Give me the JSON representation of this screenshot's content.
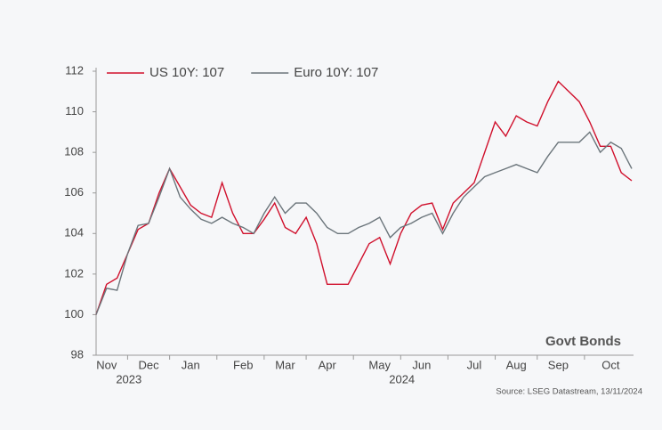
{
  "chart_data": {
    "type": "line",
    "annotation": "Govt Bonds",
    "source": "Source: LSEG Datastream, 13/11/2024",
    "categories": [
      null,
      "Nov",
      null,
      null,
      null,
      "Dec",
      null,
      null,
      null,
      "Jan",
      null,
      null,
      null,
      null,
      "Feb",
      null,
      null,
      null,
      "Mar",
      null,
      null,
      null,
      "Apr",
      null,
      null,
      null,
      null,
      "May",
      null,
      null,
      null,
      "Jun",
      null,
      null,
      null,
      null,
      "Jul",
      null,
      null,
      null,
      "Aug",
      null,
      null,
      null,
      "Sep",
      null,
      null,
      null,
      null,
      "Oct",
      null,
      null
    ],
    "years": [
      null,
      "2023",
      null,
      null,
      null,
      null,
      null,
      null,
      null,
      null,
      null,
      null,
      null,
      null,
      null,
      null,
      null,
      null,
      null,
      null,
      null,
      null,
      null,
      null,
      null,
      null,
      null,
      "2024",
      null,
      null,
      null,
      null,
      null,
      null,
      null,
      null,
      null,
      null,
      null,
      null,
      null,
      null,
      null,
      null,
      null,
      null,
      null,
      null,
      null,
      null,
      null,
      null
    ],
    "series": [
      {
        "name": "US 10Y: 107",
        "color": "#d0102c",
        "values": [
          100,
          101.5,
          101.8,
          103,
          104.2,
          104.5,
          106,
          107.2,
          106.3,
          105.4,
          105,
          104.8,
          106.5,
          105,
          104,
          104,
          104.7,
          105.5,
          104.3,
          104,
          104.8,
          103.5,
          101.5,
          101.5,
          101.5,
          102.5,
          103.5,
          103.8,
          102.5,
          104,
          105,
          105.4,
          105.5,
          104.2,
          105.5,
          106,
          106.5,
          108,
          109.5,
          108.8,
          109.8,
          109.5,
          109.3,
          110.5,
          111.5,
          111,
          110.5,
          109.5,
          108.3,
          108.3,
          107,
          106.6
        ]
      },
      {
        "name": "Euro 10Y: 107",
        "color": "#6b757b",
        "values": [
          100,
          101.3,
          101.2,
          103,
          104.4,
          104.5,
          105.8,
          107.2,
          105.8,
          105.2,
          104.7,
          104.5,
          104.8,
          104.5,
          104.3,
          104,
          105,
          105.8,
          105,
          105.5,
          105.5,
          105,
          104.3,
          104,
          104,
          104.3,
          104.5,
          104.8,
          103.8,
          104.3,
          104.5,
          104.8,
          105,
          104,
          105,
          105.8,
          106.3,
          106.8,
          107,
          107.2,
          107.4,
          107.2,
          107,
          107.8,
          108.5,
          108.5,
          108.5,
          109,
          108,
          108.5,
          108.2,
          107.2
        ]
      }
    ],
    "ylim": [
      98,
      112
    ],
    "yticks": [
      98,
      100,
      102,
      104,
      106,
      108,
      110,
      112
    ],
    "grid": false
  }
}
